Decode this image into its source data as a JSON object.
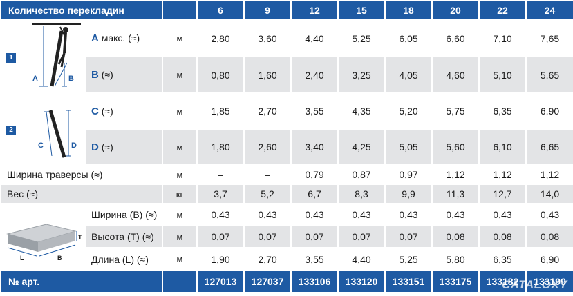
{
  "header": {
    "title": "Количество перекладин",
    "rungs": [
      "6",
      "9",
      "12",
      "15",
      "18",
      "20",
      "22",
      "24"
    ]
  },
  "group1": {
    "badge": "1",
    "icon_labels": {
      "a": "A",
      "b": "B"
    },
    "rows": [
      {
        "letter": "A",
        "label": "макс. (≈)",
        "unit": "м",
        "values": [
          "2,80",
          "3,60",
          "4,40",
          "5,25",
          "6,05",
          "6,60",
          "7,10",
          "7,65"
        ]
      },
      {
        "letter": "B",
        "label": "(≈)",
        "unit": "м",
        "values": [
          "0,80",
          "1,60",
          "2,40",
          "3,25",
          "4,05",
          "4,60",
          "5,10",
          "5,65"
        ]
      }
    ]
  },
  "group2": {
    "badge": "2",
    "icon_labels": {
      "c": "C",
      "d": "D"
    },
    "rows": [
      {
        "letter": "C",
        "label": "(≈)",
        "unit": "м",
        "values": [
          "1,85",
          "2,70",
          "3,55",
          "4,35",
          "5,20",
          "5,75",
          "6,35",
          "6,90"
        ]
      },
      {
        "letter": "D",
        "label": "(≈)",
        "unit": "м",
        "values": [
          "1,80",
          "2,60",
          "3,40",
          "4,25",
          "5,05",
          "5,60",
          "6,10",
          "6,65"
        ]
      }
    ]
  },
  "traverse": {
    "label": "Ширина траверсы (≈)",
    "unit": "м",
    "values": [
      "–",
      "–",
      "0,79",
      "0,87",
      "0,97",
      "1,12",
      "1,12",
      "1,12"
    ]
  },
  "weight": {
    "label": "Вес (≈)",
    "unit": "кг",
    "values": [
      "3,7",
      "5,2",
      "6,7",
      "8,3",
      "9,9",
      "11,3",
      "12,7",
      "14,0"
    ]
  },
  "package": {
    "icon_labels": {
      "t": "T",
      "l": "L",
      "b": "B"
    },
    "rows": [
      {
        "label": "Ширина (B) (≈)",
        "unit": "м",
        "values": [
          "0,43",
          "0,43",
          "0,43",
          "0,43",
          "0,43",
          "0,43",
          "0,43",
          "0,43"
        ]
      },
      {
        "label": "Высота (T) (≈)",
        "unit": "м",
        "values": [
          "0,07",
          "0,07",
          "0,07",
          "0,07",
          "0,07",
          "0,08",
          "0,08",
          "0,08"
        ]
      },
      {
        "label": "Длина (L) (≈)",
        "unit": "м",
        "values": [
          "1,90",
          "2,70",
          "3,55",
          "4,40",
          "5,25",
          "5,80",
          "6,35",
          "6,90"
        ]
      }
    ]
  },
  "article": {
    "label": "№ арт.",
    "values": [
      "127013",
      "127037",
      "133106",
      "133120",
      "133151",
      "133175",
      "133182",
      "133199"
    ]
  },
  "watermark": "CATALOXY"
}
